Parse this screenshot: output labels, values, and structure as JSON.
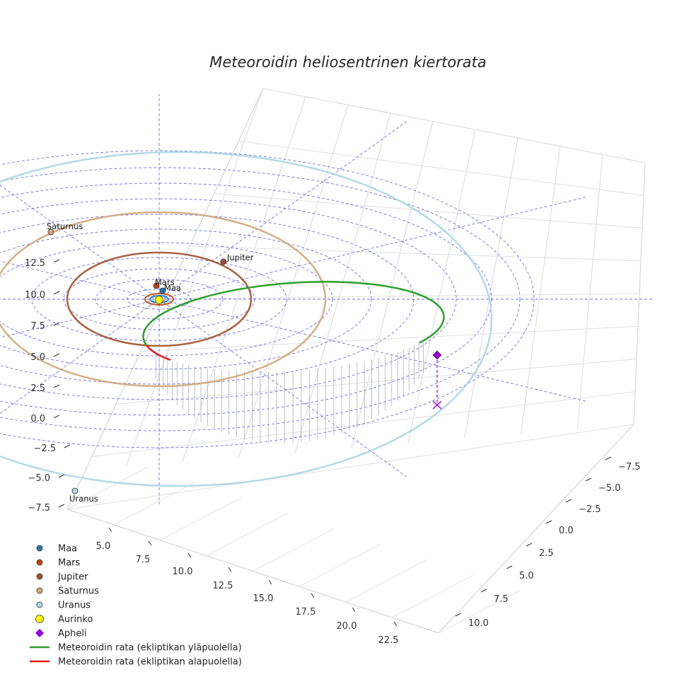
{
  "chart_data": {
    "type": "line",
    "projection": "3d",
    "title": "Meteoroidin heliosentrinen kiertorata",
    "xlabel": "",
    "ylabel": "",
    "zlabel": "",
    "axes": {
      "x_ticks": [
        "5.0",
        "7.5",
        "10.0",
        "12.5",
        "15.0",
        "17.5",
        "20.0",
        "22.5"
      ],
      "y_ticks": [
        "−7.5",
        "−5.0",
        "−2.5",
        "0.0",
        "2.5",
        "5.0",
        "7.5",
        "10.0"
      ],
      "z_ticks": [
        "−7.5",
        "−5.0",
        "−2.5",
        "0.0",
        "2.5",
        "5.0",
        "7.5",
        "10.0",
        "12.5"
      ],
      "grid": true
    },
    "planets": [
      {
        "name": "Maa",
        "color": "#1f77b4",
        "orbit_radius_au": 1.0
      },
      {
        "name": "Mars",
        "color": "#c1440e",
        "orbit_radius_au": 1.52
      },
      {
        "name": "Jupiter",
        "color": "#a0522d",
        "orbit_radius_au": 5.2
      },
      {
        "name": "Saturnus",
        "color": "#d2a679",
        "orbit_radius_au": 9.58
      },
      {
        "name": "Uranus",
        "color": "#add8e6",
        "orbit_radius_au": 19.2
      }
    ],
    "sun": {
      "name": "Aurinko",
      "color": "#ffff00"
    },
    "aphelion": {
      "name": "Apheli",
      "color": "#9400d3"
    },
    "meteoroid_orbit": [
      {
        "name": "Meteoroidin rata (ekliptikan yläpuolella)",
        "color": "#2ca02c"
      },
      {
        "name": "Meteoroidin rata (ekliptikan alapuolella)",
        "color": "#e41a1c"
      }
    ],
    "legend": {
      "placement": "bottom-left",
      "entries": [
        {
          "label": "Maa",
          "marker": "circle",
          "color": "#1f77b4"
        },
        {
          "label": "Mars",
          "marker": "circle",
          "color": "#c1440e"
        },
        {
          "label": "Jupiter",
          "marker": "circle",
          "color": "#a0522d"
        },
        {
          "label": "Saturnus",
          "marker": "circle",
          "color": "#d2a679"
        },
        {
          "label": "Uranus",
          "marker": "circle",
          "color": "#add8e6"
        },
        {
          "label": "Aurinko",
          "marker": "circle",
          "color": "#ffff00"
        },
        {
          "label": "Apheli",
          "marker": "diamond",
          "color": "#9400d3"
        },
        {
          "label": "Meteoroidin rata (ekliptikan yläpuolella)",
          "marker": "line",
          "color": "#2ca02c"
        },
        {
          "label": "Meteoroidin rata (ekliptikan alapuolella)",
          "marker": "line",
          "color": "#e41a1c"
        }
      ]
    }
  }
}
